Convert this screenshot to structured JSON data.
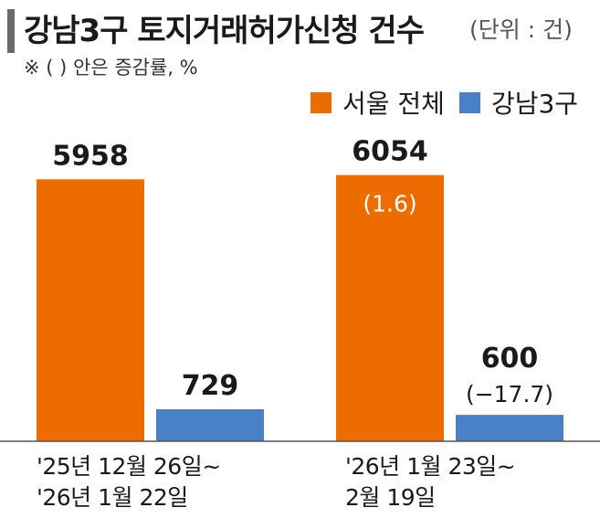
{
  "header": {
    "title": "강남3구 토지거래허가신청 건수",
    "unit": "(단위 : 건)",
    "note": "※ (  ) 안은 증감률, %"
  },
  "colors": {
    "seoul": "#ec6c00",
    "gangnam": "#4a80c6",
    "title_bar": "#6a6a6a",
    "axis": "#555555"
  },
  "chart_data": {
    "type": "bar",
    "categories": [
      [
        "'25년 12월 26일~",
        "'26년 1월 22일"
      ],
      [
        "'26년 1월 23일~",
        "2월 19일"
      ]
    ],
    "series": [
      {
        "name": "서울 전체",
        "values": [
          5958,
          6054
        ],
        "labels": [
          "5958",
          "6054"
        ],
        "changes": [
          "",
          "(1.6)"
        ]
      },
      {
        "name": "강남3구",
        "values": [
          729,
          600
        ],
        "labels": [
          "729",
          "600"
        ],
        "changes": [
          "",
          "(−17.7)"
        ]
      }
    ],
    "ylim": [
      0,
      6400
    ],
    "grid": false,
    "legend": "top-right"
  }
}
